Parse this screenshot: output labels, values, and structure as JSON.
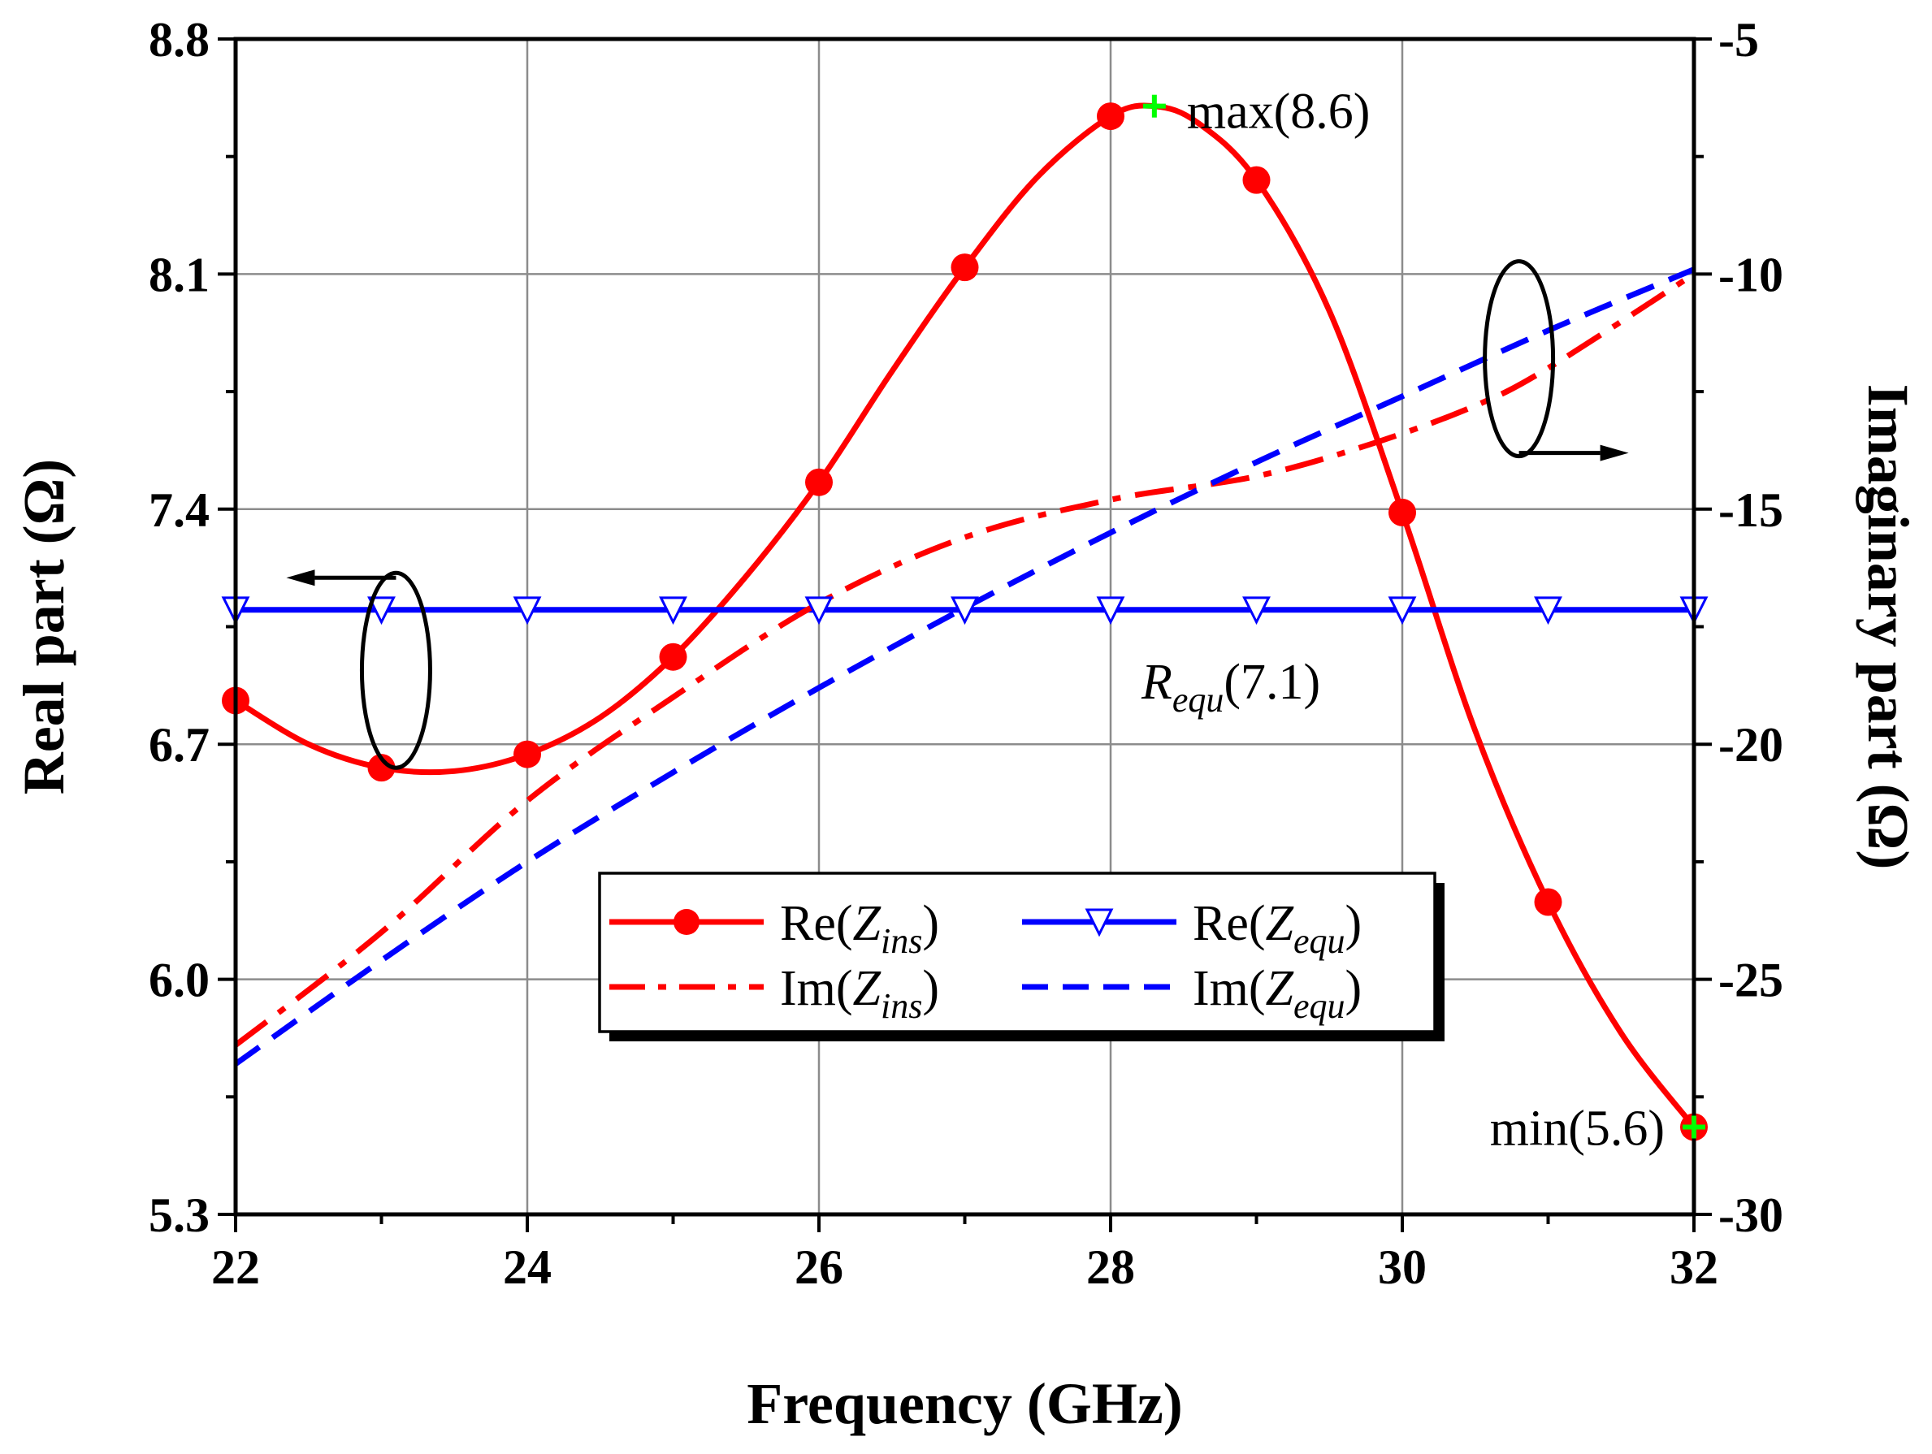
{
  "chart_data": {
    "type": "line",
    "xlabel": "Frequency (GHz)",
    "ylabel_left": "Real part (Ω)",
    "ylabel_right": "Imaginary part (Ω)",
    "xlim": [
      22,
      32
    ],
    "ylim_left": [
      5.3,
      8.8
    ],
    "ylim_right": [
      -30,
      -5
    ],
    "x_ticks": [
      22,
      24,
      26,
      28,
      30,
      32
    ],
    "x_tick_labels": [
      "22",
      "24",
      "26",
      "28",
      "30",
      "32"
    ],
    "y_left_ticks": [
      5.3,
      6.0,
      6.7,
      7.4,
      8.1,
      8.8
    ],
    "y_left_tick_labels": [
      "5.3",
      "6.0",
      "6.7",
      "7.4",
      "8.1",
      "8.8"
    ],
    "y_right_ticks": [
      -30,
      -25,
      -20,
      -15,
      -10,
      -5
    ],
    "y_right_tick_labels": [
      "-30",
      "-25",
      "-20",
      "-15",
      "-10",
      "-5"
    ],
    "grid": true,
    "legend_position": "bottom-center",
    "series": [
      {
        "name": "Re(Z_ins)",
        "legend_main": "Re(",
        "legend_sub": "Z",
        "legend_subscript": "ins",
        "legend_close": ")",
        "axis": "left",
        "color": "#ff0000",
        "style": "solid",
        "marker": "circle",
        "x": [
          22,
          22.5,
          23,
          23.5,
          24,
          24.5,
          25,
          25.5,
          26,
          26.5,
          27,
          27.5,
          28,
          28.3,
          28.6,
          29,
          29.5,
          30,
          30.5,
          31,
          31.5,
          32
        ],
        "values": [
          6.83,
          6.7,
          6.63,
          6.62,
          6.67,
          6.78,
          6.96,
          7.2,
          7.48,
          7.81,
          8.12,
          8.39,
          8.57,
          8.6,
          8.55,
          8.38,
          7.99,
          7.39,
          6.74,
          6.23,
          5.84,
          5.56
        ],
        "marker_x": [
          22,
          23,
          24,
          25,
          26,
          27,
          28,
          29,
          30,
          31,
          32
        ],
        "marker_values": [
          6.83,
          6.63,
          6.67,
          6.96,
          7.48,
          8.12,
          8.57,
          8.38,
          7.39,
          6.23,
          5.56
        ]
      },
      {
        "name": "Re(Z_equ)",
        "legend_main": "Re(",
        "legend_sub": "Z",
        "legend_subscript": "equ",
        "legend_close": ")",
        "axis": "left",
        "color": "#0000ff",
        "style": "solid",
        "marker": "triangle-down",
        "x": [
          22,
          32
        ],
        "values": [
          7.1,
          7.1
        ],
        "marker_x": [
          22,
          23,
          24,
          25,
          26,
          27,
          28,
          29,
          30,
          31,
          32
        ],
        "marker_values": [
          7.1,
          7.1,
          7.1,
          7.1,
          7.1,
          7.1,
          7.1,
          7.1,
          7.1,
          7.1,
          7.1
        ]
      },
      {
        "name": "Im(Z_ins)",
        "legend_main": "Im(",
        "legend_sub": "Z",
        "legend_subscript": "ins",
        "legend_close": ")",
        "axis": "right",
        "color": "#ff0000",
        "style": "dashdot",
        "marker": "none",
        "x": [
          22,
          23,
          24,
          25,
          26,
          27,
          28,
          29,
          29.8,
          30.5,
          31,
          32
        ],
        "values": [
          -26.4,
          -24.0,
          -21.2,
          -19.0,
          -17.0,
          -15.6,
          -14.8,
          -14.3,
          -13.6,
          -12.8,
          -12.0,
          -10.0
        ]
      },
      {
        "name": "Im(Z_equ)",
        "legend_main": "Im(",
        "legend_sub": "Z",
        "legend_subscript": "equ",
        "legend_close": ")",
        "axis": "right",
        "color": "#0000ff",
        "style": "dashed",
        "marker": "none",
        "x": [
          22,
          23,
          24,
          25,
          26,
          27,
          28,
          29,
          30,
          31,
          32
        ],
        "values": [
          -26.8,
          -24.6,
          -22.5,
          -20.6,
          -18.8,
          -17.1,
          -15.5,
          -14.0,
          -12.6,
          -11.2,
          -9.9
        ]
      }
    ],
    "annotations": [
      {
        "id": "max",
        "text": "max(8.6)",
        "x": 28.3,
        "y": 8.6,
        "axis": "left",
        "marker": "plus",
        "marker_color": "#00ff00"
      },
      {
        "id": "min",
        "text": "min(5.6)",
        "x": 32,
        "y": 5.56,
        "axis": "left",
        "marker": "plus",
        "marker_color": "#00ff00"
      },
      {
        "id": "requ",
        "main": "R",
        "subscript": "equ",
        "value_text": "(7.1)"
      }
    ],
    "axis_indicators": [
      {
        "id": "left-indicator",
        "points_to": "left axis",
        "at_x": 23.1,
        "at_y_left": 6.92
      },
      {
        "id": "right-indicator",
        "points_to": "right axis",
        "at_x": 30.8,
        "at_y_right": -11.8
      }
    ]
  }
}
